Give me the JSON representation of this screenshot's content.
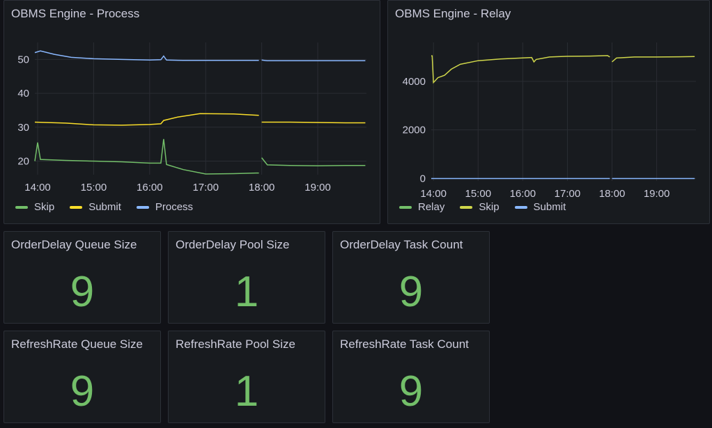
{
  "colors": {
    "green": "#73bf69",
    "yellow": "#fade2a",
    "blue": "#8ab8ff",
    "relay_yellow": "#cfd64a"
  },
  "panels": {
    "process": {
      "title": "OBMS Engine - Process",
      "chart_data": {
        "type": "line",
        "x_ticks": [
          "14:00",
          "15:00",
          "16:00",
          "17:00",
          "18:00",
          "19:00"
        ],
        "y_ticks": [
          "20",
          "30",
          "40",
          "50"
        ],
        "ylim": [
          16,
          55
        ],
        "legend": [
          "Skip",
          "Submit",
          "Process"
        ],
        "series": [
          {
            "name": "Skip",
            "color": "#73bf69",
            "values": [
              [
                13.95,
                20
              ],
              [
                14.0,
                25.5
              ],
              [
                14.05,
                20.5
              ],
              [
                14.5,
                20.2
              ],
              [
                15.0,
                20.0
              ],
              [
                15.5,
                19.8
              ],
              [
                16.0,
                19.4
              ],
              [
                16.2,
                19.4
              ],
              [
                16.25,
                26.5
              ],
              [
                16.3,
                19
              ],
              [
                16.6,
                17.5
              ],
              [
                17.0,
                16.2
              ],
              [
                17.5,
                16.3
              ],
              [
                17.9,
                16.5
              ],
              [
                17.95,
                16.5
              ],
              [
                18.0,
                21
              ],
              [
                18.1,
                18.9
              ],
              [
                18.5,
                18.7
              ],
              [
                19.0,
                18.6
              ],
              [
                19.5,
                18.7
              ],
              [
                19.85,
                18.7
              ]
            ]
          },
          {
            "name": "Submit",
            "color": "#fade2a",
            "values": [
              [
                13.95,
                31.5
              ],
              [
                14.5,
                31.2
              ],
              [
                15.0,
                30.7
              ],
              [
                15.5,
                30.6
              ],
              [
                16.0,
                30.8
              ],
              [
                16.2,
                31
              ],
              [
                16.25,
                32
              ],
              [
                16.5,
                33
              ],
              [
                16.9,
                34
              ],
              [
                17.5,
                33.9
              ],
              [
                17.95,
                33.5
              ],
              [
                18.0,
                31.5
              ],
              [
                18.5,
                31.5
              ],
              [
                19.0,
                31.4
              ],
              [
                19.5,
                31.3
              ],
              [
                19.85,
                31.3
              ]
            ]
          },
          {
            "name": "Process",
            "color": "#8ab8ff",
            "values": [
              [
                13.95,
                52
              ],
              [
                14.05,
                52.5
              ],
              [
                14.3,
                51.5
              ],
              [
                14.6,
                50.6
              ],
              [
                15.0,
                50.2
              ],
              [
                15.5,
                50.0
              ],
              [
                16.0,
                49.8
              ],
              [
                16.2,
                49.9
              ],
              [
                16.25,
                51
              ],
              [
                16.3,
                49.8
              ],
              [
                16.6,
                49.7
              ],
              [
                17.0,
                49.7
              ],
              [
                17.5,
                49.7
              ],
              [
                17.95,
                49.7
              ],
              [
                18.0,
                49.8
              ],
              [
                18.1,
                49.6
              ],
              [
                18.5,
                49.6
              ],
              [
                19.0,
                49.6
              ],
              [
                19.5,
                49.6
              ],
              [
                19.85,
                49.6
              ]
            ]
          }
        ]
      }
    },
    "relay": {
      "title": "OBMS Engine - Relay",
      "chart_data": {
        "type": "line",
        "x_ticks": [
          "14:00",
          "15:00",
          "16:00",
          "17:00",
          "18:00",
          "19:00"
        ],
        "y_ticks": [
          "0",
          "2000",
          "4000"
        ],
        "ylim": [
          -100,
          5600
        ],
        "legend": [
          "Relay",
          "Skip",
          "Submit"
        ],
        "series": [
          {
            "name": "Relay",
            "color": "#73bf69",
            "values": []
          },
          {
            "name": "Skip",
            "color": "#cfd64a",
            "values": [
              [
                13.95,
                5050
              ],
              [
                13.97,
                5050
              ],
              [
                14.0,
                3950
              ],
              [
                14.1,
                4150
              ],
              [
                14.25,
                4250
              ],
              [
                14.4,
                4500
              ],
              [
                14.6,
                4700
              ],
              [
                15.0,
                4850
              ],
              [
                15.5,
                4920
              ],
              [
                16.0,
                4960
              ],
              [
                16.2,
                4980
              ],
              [
                16.25,
                4800
              ],
              [
                16.3,
                4900
              ],
              [
                16.6,
                5000
              ],
              [
                17.0,
                5030
              ],
              [
                17.5,
                5040
              ],
              [
                17.9,
                5060
              ],
              [
                17.95,
                5000
              ],
              [
                18.0,
                4800
              ],
              [
                18.1,
                4960
              ],
              [
                18.5,
                5000
              ],
              [
                19.0,
                5000
              ],
              [
                19.5,
                5010
              ],
              [
                19.85,
                5020
              ]
            ]
          },
          {
            "name": "Submit",
            "color": "#8ab8ff",
            "values": [
              [
                13.95,
                0
              ],
              [
                14.0,
                0
              ],
              [
                15.0,
                0
              ],
              [
                16.0,
                0
              ],
              [
                17.0,
                0
              ],
              [
                17.95,
                0
              ],
              [
                18.0,
                0
              ],
              [
                19.0,
                0
              ],
              [
                19.85,
                0
              ]
            ]
          }
        ]
      }
    }
  },
  "stats": [
    {
      "title": "OrderDelay Queue Size",
      "value": "9"
    },
    {
      "title": "OrderDelay Pool Size",
      "value": "1"
    },
    {
      "title": "OrderDelay Task Count",
      "value": "9"
    },
    {
      "title": "RefreshRate Queue Size",
      "value": "9"
    },
    {
      "title": "RefreshRate Pool Size",
      "value": "1"
    },
    {
      "title": "RefreshRate Task Count",
      "value": "9"
    }
  ]
}
